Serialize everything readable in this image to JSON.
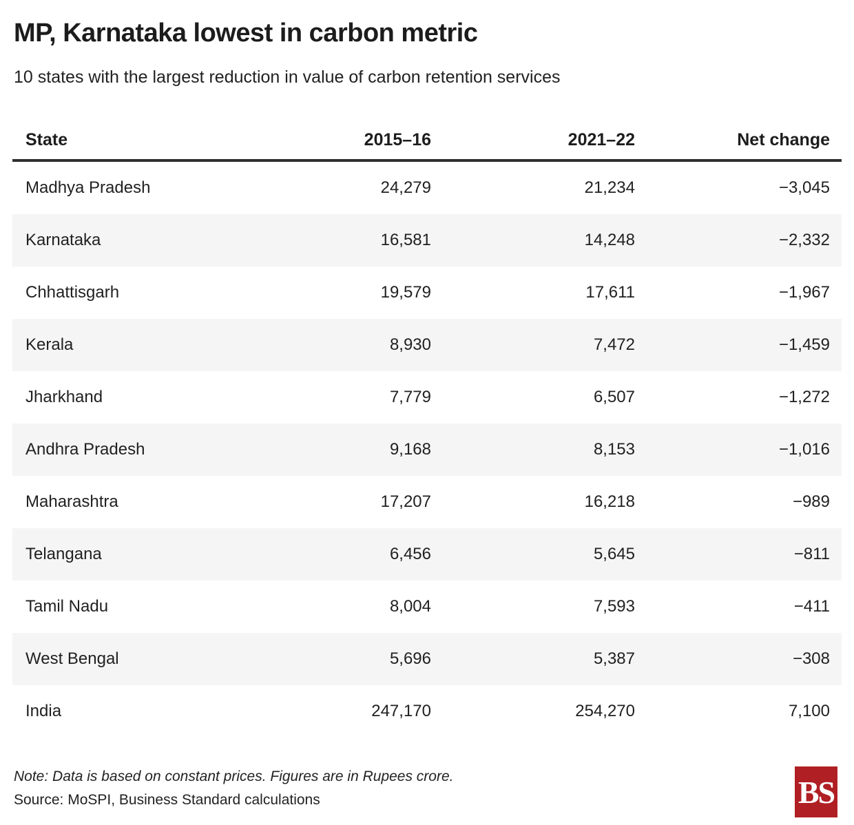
{
  "header": {
    "title": "MP, Karnataka lowest in carbon metric",
    "subtitle": "10 states with the largest reduction in value of carbon retention services"
  },
  "table": {
    "columns": [
      "State",
      "2015–16",
      "2021–22",
      "Net change"
    ],
    "rows": [
      {
        "state": "Madhya Pradesh",
        "y2015": "24,279",
        "y2021": "21,234",
        "net": "−3,045"
      },
      {
        "state": "Karnataka",
        "y2015": "16,581",
        "y2021": "14,248",
        "net": "−2,332"
      },
      {
        "state": "Chhattisgarh",
        "y2015": "19,579",
        "y2021": "17,611",
        "net": "−1,967"
      },
      {
        "state": "Kerala",
        "y2015": "8,930",
        "y2021": "7,472",
        "net": "−1,459"
      },
      {
        "state": "Jharkhand",
        "y2015": "7,779",
        "y2021": "6,507",
        "net": "−1,272"
      },
      {
        "state": "Andhra Pradesh",
        "y2015": "9,168",
        "y2021": "8,153",
        "net": "−1,016"
      },
      {
        "state": "Maharashtra",
        "y2015": "17,207",
        "y2021": "16,218",
        "net": "−989"
      },
      {
        "state": "Telangana",
        "y2015": "6,456",
        "y2021": "5,645",
        "net": "−811"
      },
      {
        "state": "Tamil Nadu",
        "y2015": "8,004",
        "y2021": "7,593",
        "net": "−411"
      },
      {
        "state": "West Bengal",
        "y2015": "5,696",
        "y2021": "5,387",
        "net": "−308"
      },
      {
        "state": "India",
        "y2015": "247,170",
        "y2021": "254,270",
        "net": "7,100"
      }
    ]
  },
  "footer": {
    "note": "Note: Data is based on constant prices. Figures are in Rupees crore.",
    "source": "Source: MoSPI, Business Standard calculations",
    "logo_text": "BS"
  },
  "colors": {
    "logo_red": "#b01f24",
    "row_stripe": "#f5f5f5",
    "header_rule": "#2e2e2e",
    "text": "#212121"
  },
  "chart_data": {
    "type": "table",
    "title": "MP, Karnataka lowest in carbon metric",
    "subtitle": "10 states with the largest reduction in value of carbon retention services",
    "columns": [
      "State",
      "2015-16",
      "2021-22",
      "Net change"
    ],
    "rows": [
      [
        "Madhya Pradesh",
        24279,
        21234,
        -3045
      ],
      [
        "Karnataka",
        16581,
        14248,
        -2332
      ],
      [
        "Chhattisgarh",
        19579,
        17611,
        -1967
      ],
      [
        "Kerala",
        8930,
        7472,
        -1459
      ],
      [
        "Jharkhand",
        7779,
        6507,
        -1272
      ],
      [
        "Andhra Pradesh",
        9168,
        8153,
        -1016
      ],
      [
        "Maharashtra",
        17207,
        16218,
        -989
      ],
      [
        "Telangana",
        6456,
        5645,
        -811
      ],
      [
        "Tamil Nadu",
        8004,
        7593,
        -411
      ],
      [
        "West Bengal",
        5696,
        5387,
        -308
      ],
      [
        "India",
        247170,
        254270,
        7100
      ]
    ],
    "units": "Rupees crore, constant prices",
    "note": "Note: Data is based on constant prices. Figures are in Rupees crore.",
    "source": "Source: MoSPI, Business Standard calculations",
    "layout": {
      "zebra_striping": true,
      "numeric_alignment": "right",
      "grid": false
    }
  }
}
